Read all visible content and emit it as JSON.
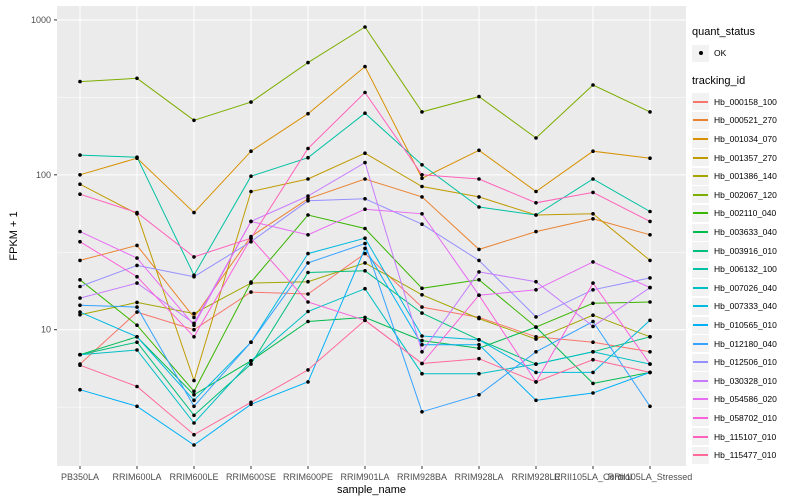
{
  "chart_data": {
    "type": "line",
    "title": "",
    "xlabel": "sample_name",
    "ylabel": "FPKM + 1",
    "y_scale": "log10",
    "y_ticks": [
      10,
      100,
      1000
    ],
    "y_minor_ticks": [
      3.162,
      31.62,
      316.2
    ],
    "ylim_log10": [
      0.12,
      3.09
    ],
    "grid": "on",
    "panel_bg": "#EBEBEB",
    "grid_color": "#FFFFFF",
    "tick_label_color": "#4D4D4D",
    "point_color": "#000000",
    "legend_position": "right",
    "legend": {
      "quant_status_title": "quant_status",
      "quant_status_items": [
        "OK"
      ],
      "tracking_title": "tracking_id"
    },
    "categories": [
      "PB350LA",
      "RRIM600LA",
      "RRIM600LE",
      "RRIM600SE",
      "RRIM600PE",
      "RRIM901LA",
      "RRIM928BA",
      "RRIM928LA",
      "RRIM928LE",
      "RRII105LA_Control",
      "RRII105LA_Stressed"
    ],
    "series": [
      {
        "name": "Hb_000158_100",
        "color": "#F8766D",
        "values": [
          6.0,
          13,
          10,
          17.5,
          17,
          31,
          14,
          12,
          9,
          8.3,
          7.2
        ]
      },
      {
        "name": "Hb_000521_270",
        "color": "#EA8331",
        "values": [
          28,
          35,
          12,
          40,
          70,
          94,
          72,
          33,
          43,
          52,
          41
        ]
      },
      {
        "name": "Hb_001034_070",
        "color": "#D89000",
        "values": [
          100,
          128,
          57,
          142,
          248,
          500,
          95,
          144,
          78,
          142,
          128
        ]
      },
      {
        "name": "Hb_001357_270",
        "color": "#C09B00",
        "values": [
          87,
          56,
          4.7,
          78,
          94,
          138,
          84,
          72,
          55,
          56,
          28
        ]
      },
      {
        "name": "Hb_001386_140",
        "color": "#A3A500",
        "values": [
          12.5,
          15,
          12.7,
          20,
          20.4,
          27,
          16.8,
          11.8,
          8.7,
          12.4,
          9
        ]
      },
      {
        "name": "Hb_002067_120",
        "color": "#7CAE00",
        "values": [
          400,
          420,
          225,
          295,
          530,
          900,
          255,
          320,
          173,
          380,
          255
        ]
      },
      {
        "name": "Hb_002110_040",
        "color": "#39B600",
        "values": [
          21,
          10.7,
          4.0,
          20.3,
          55,
          45,
          18.5,
          21,
          10.4,
          14.8,
          15.1
        ]
      },
      {
        "name": "Hb_003633_040",
        "color": "#00BB4E",
        "values": [
          6.9,
          9,
          3.8,
          6.3,
          11.3,
          12,
          8.5,
          7.6,
          10.4,
          4.5,
          5.3
        ]
      },
      {
        "name": "Hb_003916_010",
        "color": "#00BF7D",
        "values": [
          6.9,
          8.3,
          2.8,
          6.0,
          23.4,
          24,
          12.8,
          8.6,
          6.0,
          7.2,
          9.0
        ]
      },
      {
        "name": "Hb_006132_100",
        "color": "#00C1A3",
        "values": [
          134,
          130,
          22.5,
          98,
          129,
          250,
          116,
          62,
          55,
          94,
          58
        ]
      },
      {
        "name": "Hb_007026_040",
        "color": "#00BFC4",
        "values": [
          6.9,
          7.4,
          2.5,
          6.3,
          13.1,
          18.4,
          5.2,
          5.2,
          6.0,
          7.2,
          6.0
        ]
      },
      {
        "name": "Hb_007333_040",
        "color": "#00BAE0",
        "values": [
          13,
          9,
          3.5,
          8.3,
          31,
          39,
          9.1,
          8.6,
          5.3,
          5.3,
          11.5
        ]
      },
      {
        "name": "Hb_010565_010",
        "color": "#00B0F6",
        "values": [
          4.1,
          3.2,
          1.8,
          3.3,
          4.6,
          33.5,
          8.0,
          8.0,
          3.5,
          3.9,
          5.3
        ]
      },
      {
        "name": "Hb_012180_040",
        "color": "#35A2FF",
        "values": [
          14.4,
          14,
          3.2,
          8.3,
          27,
          36,
          2.95,
          3.8,
          7.2,
          11.3,
          3.2
        ]
      },
      {
        "name": "Hb_012506_010",
        "color": "#9590FF",
        "values": [
          19,
          26,
          22,
          37,
          68,
          70,
          48,
          28,
          12.1,
          18.1,
          21.6
        ]
      },
      {
        "name": "Hb_030328_010",
        "color": "#C77CFF",
        "values": [
          16,
          20,
          11,
          50,
          73,
          120,
          7.2,
          23.6,
          20.4,
          10.5,
          18.7
        ]
      },
      {
        "name": "Hb_054586_020",
        "color": "#E76BF3",
        "values": [
          43,
          29,
          10.7,
          50,
          41,
          60,
          56,
          16.7,
          18.1,
          27.4,
          18.7
        ]
      },
      {
        "name": "Hb_058702_010",
        "color": "#FA62DB",
        "values": [
          37,
          22,
          9,
          39,
          15.1,
          11.5,
          6.05,
          16.7,
          4.6,
          20,
          6.0
        ]
      },
      {
        "name": "Hb_115107_010",
        "color": "#FF62BC",
        "values": [
          75,
          57,
          29.5,
          39,
          148,
          340,
          100,
          94,
          66,
          77,
          50
        ]
      },
      {
        "name": "Hb_115477_010",
        "color": "#FF6A98",
        "values": [
          5.9,
          4.3,
          2.1,
          3.4,
          5.5,
          11.5,
          6.05,
          6.5,
          4.6,
          6.4,
          5.3
        ]
      }
    ]
  }
}
